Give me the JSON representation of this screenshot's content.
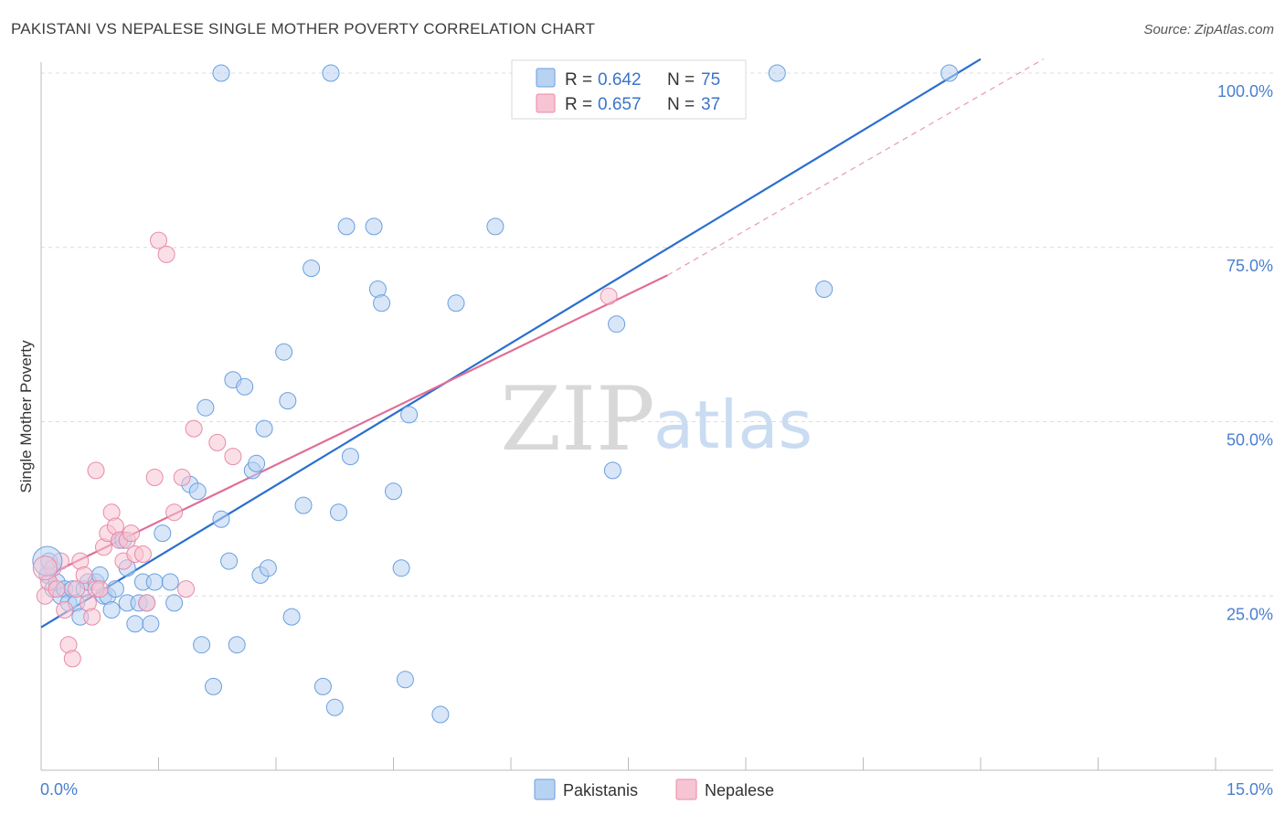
{
  "header": {
    "title": "PAKISTANI VS NEPALESE SINGLE MOTHER POVERTY CORRELATION CHART",
    "source": "Source: ZipAtlas.com"
  },
  "watermark": {
    "zip": "ZIP",
    "atlas": "atlas"
  },
  "chart_data": {
    "type": "scatter",
    "title": "PAKISTANI VS NEPALESE SINGLE MOTHER POVERTY CORRELATION CHART",
    "xlabel": "",
    "ylabel": "Single Mother Poverty",
    "xlim": [
      0,
      15
    ],
    "ylim": [
      0,
      100
    ],
    "x_tick_labels": {
      "min": "0.0%",
      "max": "15.0%"
    },
    "y_ticks": [
      {
        "value": 25,
        "label": "25.0%"
      },
      {
        "value": 50,
        "label": "50.0%"
      },
      {
        "value": 75,
        "label": "75.0%"
      },
      {
        "value": 100,
        "label": "100.0%"
      }
    ],
    "grid": true,
    "legend_placement": "top-center",
    "series": [
      {
        "name": "Pakistanis",
        "color": "#6a9fe0",
        "fill": "#b8d2f2",
        "R_label": "R =",
        "R": "0.642",
        "N_label": "N =",
        "N": "75",
        "trend": {
          "x0": 0,
          "y0": 20.5,
          "x1": 12.0,
          "y1": 102,
          "style": "solid",
          "color": "#2b6fcf"
        },
        "points": [
          [
            0.08,
            28
          ],
          [
            0.1,
            30
          ],
          [
            0.15,
            26
          ],
          [
            0.2,
            27
          ],
          [
            0.25,
            25
          ],
          [
            0.3,
            26
          ],
          [
            0.35,
            24
          ],
          [
            0.4,
            26
          ],
          [
            0.45,
            24
          ],
          [
            0.5,
            22
          ],
          [
            0.55,
            26
          ],
          [
            0.6,
            27
          ],
          [
            0.7,
            27
          ],
          [
            0.75,
            28
          ],
          [
            0.8,
            25
          ],
          [
            0.85,
            25
          ],
          [
            0.9,
            23
          ],
          [
            0.95,
            26
          ],
          [
            1.0,
            33
          ],
          [
            1.05,
            33
          ],
          [
            1.1,
            24
          ],
          [
            1.2,
            21
          ],
          [
            1.25,
            24
          ],
          [
            1.3,
            27
          ],
          [
            1.35,
            24
          ],
          [
            1.4,
            21
          ],
          [
            1.45,
            27
          ],
          [
            1.55,
            34
          ],
          [
            1.65,
            27
          ],
          [
            1.7,
            24
          ],
          [
            1.9,
            41
          ],
          [
            2.0,
            40
          ],
          [
            2.05,
            18
          ],
          [
            2.1,
            52
          ],
          [
            2.2,
            12
          ],
          [
            2.3,
            36
          ],
          [
            2.4,
            30
          ],
          [
            2.45,
            56
          ],
          [
            2.5,
            18
          ],
          [
            2.6,
            55
          ],
          [
            2.7,
            43
          ],
          [
            2.75,
            44
          ],
          [
            2.8,
            28
          ],
          [
            2.85,
            49
          ],
          [
            2.9,
            29
          ],
          [
            3.1,
            60
          ],
          [
            3.15,
            53
          ],
          [
            3.2,
            22
          ],
          [
            3.35,
            38
          ],
          [
            3.45,
            72
          ],
          [
            3.6,
            12
          ],
          [
            3.75,
            9
          ],
          [
            3.8,
            37
          ],
          [
            3.9,
            78
          ],
          [
            3.95,
            45
          ],
          [
            4.25,
            78
          ],
          [
            4.3,
            69
          ],
          [
            4.35,
            67
          ],
          [
            4.5,
            40
          ],
          [
            4.6,
            29
          ],
          [
            4.65,
            13
          ],
          [
            4.7,
            51
          ],
          [
            5.1,
            8
          ],
          [
            5.3,
            67
          ],
          [
            5.8,
            78
          ],
          [
            7.3,
            43
          ],
          [
            7.35,
            64
          ],
          [
            10.0,
            69
          ],
          [
            2.3,
            100
          ],
          [
            3.7,
            100
          ],
          [
            6.2,
            100
          ],
          [
            6.7,
            100
          ],
          [
            9.4,
            100
          ],
          [
            11.6,
            100
          ],
          [
            1.1,
            29
          ]
        ]
      },
      {
        "name": "Nepalese",
        "color": "#e98aa8",
        "fill": "#f7c4d4",
        "R_label": "R =",
        "R": "0.657",
        "N_label": "N =",
        "N": "37",
        "trend": {
          "x0": 0,
          "y0": 27.5,
          "x1": 8.0,
          "y1": 71,
          "style": "solid",
          "color": "#e06e97",
          "dashed_to": {
            "x": 12.8,
            "y": 102
          }
        },
        "points": [
          [
            0.05,
            25
          ],
          [
            0.1,
            27
          ],
          [
            0.15,
            29
          ],
          [
            0.2,
            26
          ],
          [
            0.25,
            30
          ],
          [
            0.3,
            23
          ],
          [
            0.35,
            18
          ],
          [
            0.4,
            16
          ],
          [
            0.45,
            26
          ],
          [
            0.5,
            30
          ],
          [
            0.55,
            28
          ],
          [
            0.6,
            24
          ],
          [
            0.65,
            22
          ],
          [
            0.7,
            26
          ],
          [
            0.75,
            26
          ],
          [
            0.8,
            32
          ],
          [
            0.85,
            34
          ],
          [
            0.9,
            37
          ],
          [
            0.95,
            35
          ],
          [
            1.0,
            33
          ],
          [
            1.05,
            30
          ],
          [
            1.1,
            33
          ],
          [
            1.15,
            34
          ],
          [
            1.2,
            31
          ],
          [
            1.3,
            31
          ],
          [
            1.35,
            24
          ],
          [
            1.45,
            42
          ],
          [
            1.5,
            76
          ],
          [
            1.6,
            74
          ],
          [
            1.7,
            37
          ],
          [
            1.8,
            42
          ],
          [
            1.85,
            26
          ],
          [
            1.95,
            49
          ],
          [
            2.25,
            47
          ],
          [
            2.45,
            45
          ],
          [
            0.7,
            43
          ],
          [
            7.25,
            68
          ]
        ]
      }
    ]
  }
}
